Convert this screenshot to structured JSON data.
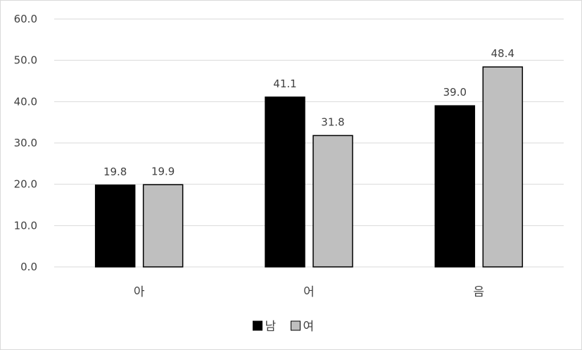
{
  "chart_data": {
    "type": "bar",
    "categories": [
      "아",
      "어",
      "음"
    ],
    "series": [
      {
        "name": "남",
        "values": [
          19.8,
          41.1,
          39.0
        ],
        "color": "#000000"
      },
      {
        "name": "여",
        "values": [
          19.9,
          31.8,
          48.4
        ],
        "color": "#bfbfbf"
      }
    ],
    "ylim": [
      0,
      60
    ],
    "yticks": [
      "0.0",
      "10.0",
      "20.0",
      "30.0",
      "40.0",
      "50.0",
      "60.0"
    ],
    "data_labels": [
      [
        "19.8",
        "41.1",
        "39.0"
      ],
      [
        "19.9",
        "31.8",
        "48.4"
      ]
    ],
    "grid": true,
    "legend": "bottom",
    "gridline_color": "#d9d9d9",
    "text_color": "#404040",
    "bar_edge_color": "#000000"
  }
}
